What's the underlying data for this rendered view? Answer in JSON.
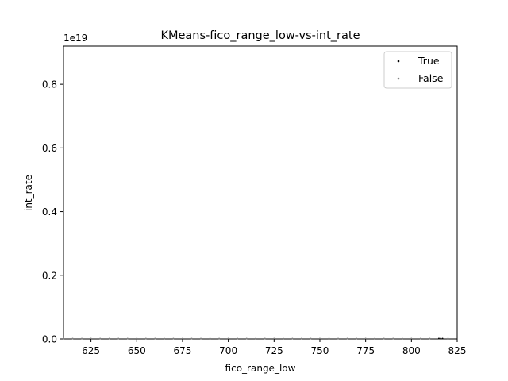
{
  "chart_data": {
    "type": "scatter",
    "title": "KMeans-fico_range_low-vs-int_rate",
    "xlabel": "fico_range_low",
    "ylabel": "int_rate",
    "y_offset_label": "1e19",
    "xlim": [
      610,
      825
    ],
    "ylim": [
      0,
      0.92
    ],
    "x_ticks": [
      625,
      650,
      675,
      700,
      725,
      750,
      775,
      800,
      825
    ],
    "y_ticks": [
      0.0,
      0.2,
      0.4,
      0.6,
      0.8
    ],
    "y_tick_labels": [
      "0.0",
      "0.2",
      "0.4",
      "0.6",
      "0.8"
    ],
    "grid": false,
    "legend_placement": "top-right",
    "series": [
      {
        "name": "True",
        "color": "#000000",
        "x": [
          815,
          816,
          817
        ],
        "y": [
          0.0,
          0.0,
          0.0
        ]
      },
      {
        "name": "False",
        "color": "#808080",
        "x": [
          610,
          615,
          620,
          625,
          630,
          635,
          640,
          645,
          650,
          655,
          660,
          665,
          670,
          675,
          680,
          685,
          690,
          695,
          700,
          705,
          710,
          715,
          720,
          725,
          730,
          735,
          740,
          745,
          750,
          755,
          760,
          765,
          770,
          775,
          780,
          785,
          790,
          795,
          800,
          805,
          810,
          815,
          820
        ],
        "y": [
          0.0,
          0.0,
          0.0,
          0.0,
          0.0,
          0.0,
          0.0,
          0.0,
          0.0,
          0.0,
          0.0,
          0.0,
          0.0,
          0.0,
          0.0,
          0.0,
          0.0,
          0.0,
          0.0,
          0.0,
          0.0,
          0.0,
          0.0,
          0.0,
          0.0,
          0.0,
          0.0,
          0.0,
          0.0,
          0.0,
          0.0,
          0.0,
          0.0,
          0.0,
          0.0,
          0.0,
          0.0,
          0.0,
          0.0,
          0.0,
          0.0,
          0.0,
          0.0
        ]
      }
    ]
  }
}
